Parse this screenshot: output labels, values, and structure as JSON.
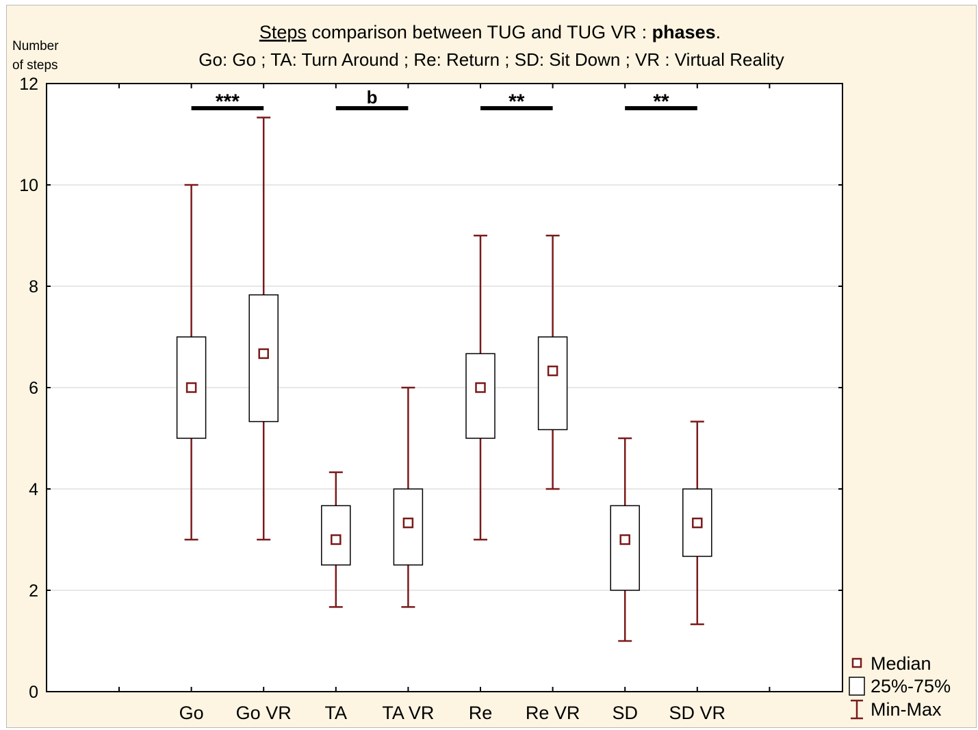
{
  "chart_data": {
    "type": "boxplot",
    "title_parts": [
      {
        "text": "Steps",
        "underline": true,
        "bold": false
      },
      {
        "text": " comparison between TUG and TUG VR : ",
        "underline": false,
        "bold": false
      },
      {
        "text": "phases",
        "underline": false,
        "bold": true
      },
      {
        "text": ".",
        "underline": false,
        "bold": false
      }
    ],
    "subtitle": "Go: Go ; TA: Turn Around ; Re: Return ; SD: Sit Down ; VR : Virtual Reality",
    "ylabel_lines": [
      "Number",
      "of steps"
    ],
    "ylim": [
      0,
      12
    ],
    "y_ticks": [
      0,
      2,
      4,
      6,
      8,
      10,
      12
    ],
    "grid": true,
    "categories": [
      "Go",
      "Go VR",
      "TA",
      "TA VR",
      "Re",
      "Re VR",
      "SD",
      "SD VR"
    ],
    "boxes": [
      {
        "category": "Go",
        "min": 3,
        "q1": 5,
        "median": 6,
        "q3": 7,
        "max": 10
      },
      {
        "category": "Go VR",
        "min": 3,
        "q1": 5.33,
        "median": 6.67,
        "q3": 7.83,
        "max": 11.33
      },
      {
        "category": "TA",
        "min": 1.67,
        "q1": 2.5,
        "median": 3,
        "q3": 3.67,
        "max": 4.33
      },
      {
        "category": "TA VR",
        "min": 1.67,
        "q1": 2.5,
        "median": 3.33,
        "q3": 4,
        "max": 6
      },
      {
        "category": "Re",
        "min": 3,
        "q1": 5,
        "median": 6,
        "q3": 6.67,
        "max": 9
      },
      {
        "category": "Re VR",
        "min": 4,
        "q1": 5.17,
        "median": 6.33,
        "q3": 7,
        "max": 9
      },
      {
        "category": "SD",
        "min": 1,
        "q1": 2,
        "median": 3,
        "q3": 3.67,
        "max": 5
      },
      {
        "category": "SD VR",
        "min": 1.33,
        "q1": 2.67,
        "median": 3.33,
        "q3": 4,
        "max": 5.33
      }
    ],
    "significance": [
      {
        "from": "Go",
        "to": "Go VR",
        "label": "***"
      },
      {
        "from": "TA",
        "to": "TA VR",
        "label": "b"
      },
      {
        "from": "Re",
        "to": "Re VR",
        "label": "**"
      },
      {
        "from": "SD",
        "to": "SD VR",
        "label": "**"
      }
    ],
    "legend": {
      "position": "bottom-right",
      "items": [
        {
          "key": "median",
          "label": "Median"
        },
        {
          "key": "box",
          "label": "25%-75%"
        },
        {
          "key": "whisker",
          "label": "Min-Max"
        }
      ]
    },
    "colors": {
      "box_stroke": "#000000",
      "whisker": "#7a1a1a",
      "median": "#7a1a1a",
      "grid": "#cfcfcf",
      "background": "#fdf5e2"
    }
  }
}
